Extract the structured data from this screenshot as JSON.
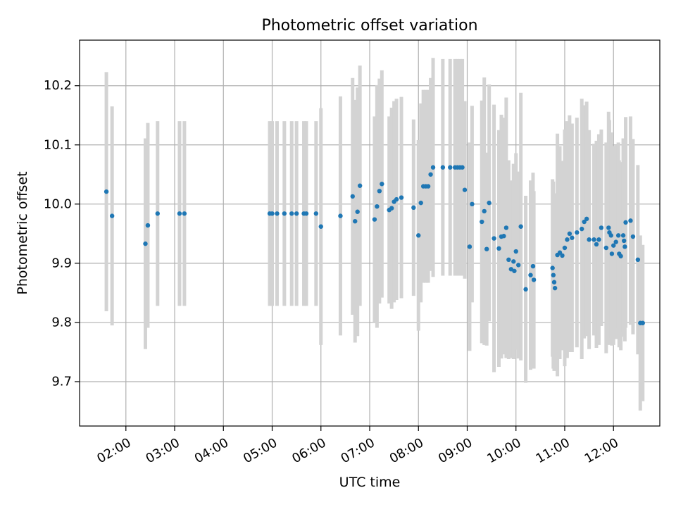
{
  "chart_data": {
    "type": "scatter",
    "title": "Photometric offset variation",
    "xlabel": "UTC time",
    "ylabel": "Photometric offset",
    "xlim": [
      "01:03",
      "12:57"
    ],
    "ylim": [
      9.625,
      10.277
    ],
    "x_ticks": [
      "02:00",
      "03:00",
      "04:00",
      "05:00",
      "06:00",
      "07:00",
      "08:00",
      "09:00",
      "10:00",
      "11:00",
      "12:00"
    ],
    "y_ticks": [
      9.7,
      9.8,
      9.9,
      10.0,
      10.1,
      10.2
    ],
    "y_tick_labels": [
      "9.7",
      "9.8",
      "9.9",
      "10.0",
      "10.1",
      "10.2"
    ],
    "grid": true,
    "x_tick_rotation": 30,
    "colors": {
      "point": "#1f77b4",
      "errorbar": "#d3d3d3",
      "grid": "#b0b0b0",
      "axes": "#000000"
    },
    "series": [
      {
        "points": [
          [
            "01:36",
            10.021,
            0.202
          ],
          [
            "01:43",
            9.98,
            0.185
          ],
          [
            "02:24",
            9.933,
            0.178
          ],
          [
            "02:27",
            9.964,
            0.173
          ],
          [
            "02:39",
            9.984,
            0.156
          ],
          [
            "03:06",
            9.984,
            0.156
          ],
          [
            "03:12",
            9.984,
            0.156
          ],
          [
            "04:57",
            9.984,
            0.156
          ],
          [
            "05:00",
            9.984,
            0.156
          ],
          [
            "05:06",
            9.984,
            0.156
          ],
          [
            "05:15",
            9.984,
            0.156
          ],
          [
            "05:24",
            9.984,
            0.156
          ],
          [
            "05:30",
            9.984,
            0.156
          ],
          [
            "05:39",
            9.984,
            0.156
          ],
          [
            "05:42",
            9.984,
            0.156
          ],
          [
            "05:54",
            9.984,
            0.156
          ],
          [
            "06:00",
            9.962,
            0.2
          ],
          [
            "06:24",
            9.98,
            0.202
          ],
          [
            "06:39",
            10.013,
            0.2
          ],
          [
            "06:42",
            9.971,
            0.205
          ],
          [
            "06:45",
            9.987,
            0.21
          ],
          [
            "06:48",
            10.031,
            0.203
          ],
          [
            "07:06",
            9.974,
            0.174
          ],
          [
            "07:09",
            9.996,
            0.205
          ],
          [
            "07:12",
            10.022,
            0.19
          ],
          [
            "07:15",
            10.034,
            0.192
          ],
          [
            "07:24",
            9.99,
            0.158
          ],
          [
            "07:27",
            9.993,
            0.17
          ],
          [
            "07:30",
            10.004,
            0.17
          ],
          [
            "07:33",
            10.008,
            0.17
          ],
          [
            "07:39",
            10.011,
            0.17
          ],
          [
            "07:54",
            9.994,
            0.149
          ],
          [
            "08:00",
            9.947,
            0.161
          ],
          [
            "08:03",
            10.002,
            0.168
          ],
          [
            "08:06",
            10.03,
            0.163
          ],
          [
            "08:09",
            10.03,
            0.163
          ],
          [
            "08:12",
            10.03,
            0.163
          ],
          [
            "08:15",
            10.05,
            0.163
          ],
          [
            "08:18",
            10.062,
            0.185
          ],
          [
            "08:30",
            10.062,
            0.183
          ],
          [
            "08:39",
            10.062,
            0.183
          ],
          [
            "08:45",
            10.062,
            0.183
          ],
          [
            "08:48",
            10.062,
            0.183
          ],
          [
            "08:51",
            10.062,
            0.183
          ],
          [
            "08:54",
            10.062,
            0.183
          ],
          [
            "08:57",
            10.024,
            0.15
          ],
          [
            "09:03",
            9.928,
            0.176
          ],
          [
            "09:06",
            10.0,
            0.166
          ],
          [
            "09:18",
            9.97,
            0.205
          ],
          [
            "09:21",
            9.988,
            0.226
          ],
          [
            "09:24",
            9.924,
            0.163
          ],
          [
            "09:27",
            10.002,
            0.2
          ],
          [
            "09:33",
            9.942,
            0.226
          ],
          [
            "09:39",
            9.925,
            0.2
          ],
          [
            "09:42",
            9.945,
            0.206
          ],
          [
            "09:45",
            9.946,
            0.2
          ],
          [
            "09:48",
            9.96,
            0.22
          ],
          [
            "09:51",
            9.906,
            0.168
          ],
          [
            "09:54",
            9.89,
            0.15
          ],
          [
            "09:57",
            9.903,
            0.165
          ],
          [
            "09:58",
            9.887,
            0.148
          ],
          [
            "10:00",
            9.92,
            0.166
          ],
          [
            "10:03",
            9.897,
            0.158
          ],
          [
            "10:06",
            9.962,
            0.226
          ],
          [
            "10:12",
            9.856,
            0.158
          ],
          [
            "10:18",
            9.88,
            0.16
          ],
          [
            "10:21",
            9.895,
            0.158
          ],
          [
            "10:22",
            9.872,
            0.15
          ],
          [
            "10:45",
            9.892,
            0.15
          ],
          [
            "10:46",
            9.88,
            0.158
          ],
          [
            "10:47",
            9.868,
            0.15
          ],
          [
            "10:48",
            9.858,
            0.126
          ],
          [
            "10:51",
            9.914,
            0.205
          ],
          [
            "10:54",
            9.918,
            0.18
          ],
          [
            "10:57",
            9.913,
            0.16
          ],
          [
            "11:00",
            9.926,
            0.2
          ],
          [
            "11:03",
            9.94,
            0.2
          ],
          [
            "11:06",
            9.95,
            0.2
          ],
          [
            "11:09",
            9.943,
            0.193
          ],
          [
            "11:15",
            9.952,
            0.194
          ],
          [
            "11:21",
            9.958,
            0.22
          ],
          [
            "11:24",
            9.97,
            0.197
          ],
          [
            "11:27",
            9.975,
            0.198
          ],
          [
            "11:30",
            9.94,
            0.185
          ],
          [
            "11:36",
            9.94,
            0.162
          ],
          [
            "11:39",
            9.932,
            0.175
          ],
          [
            "11:42",
            9.94,
            0.178
          ],
          [
            "11:45",
            9.96,
            0.166
          ],
          [
            "11:51",
            9.926,
            0.178
          ],
          [
            "11:54",
            9.96,
            0.196
          ],
          [
            "11:55",
            9.952,
            0.19
          ],
          [
            "11:57",
            9.947,
            0.174
          ],
          [
            "11:58",
            9.916,
            0.155
          ],
          [
            "12:00",
            9.93,
            0.168
          ],
          [
            "12:03",
            9.936,
            0.164
          ],
          [
            "12:06",
            9.947,
            0.157
          ],
          [
            "12:07",
            9.916,
            0.158
          ],
          [
            "12:09",
            9.912,
            0.159
          ],
          [
            "12:12",
            9.947,
            0.164
          ],
          [
            "12:13",
            9.938,
            0.162
          ],
          [
            "12:14",
            9.928,
            0.16
          ],
          [
            "12:15",
            9.969,
            0.178
          ],
          [
            "12:21",
            9.972,
            0.176
          ],
          [
            "12:24",
            9.945,
            0.165
          ],
          [
            "12:30",
            9.906,
            0.16
          ],
          [
            "12:33",
            9.799,
            0.148
          ],
          [
            "12:36",
            9.799,
            0.132
          ]
        ]
      }
    ]
  }
}
